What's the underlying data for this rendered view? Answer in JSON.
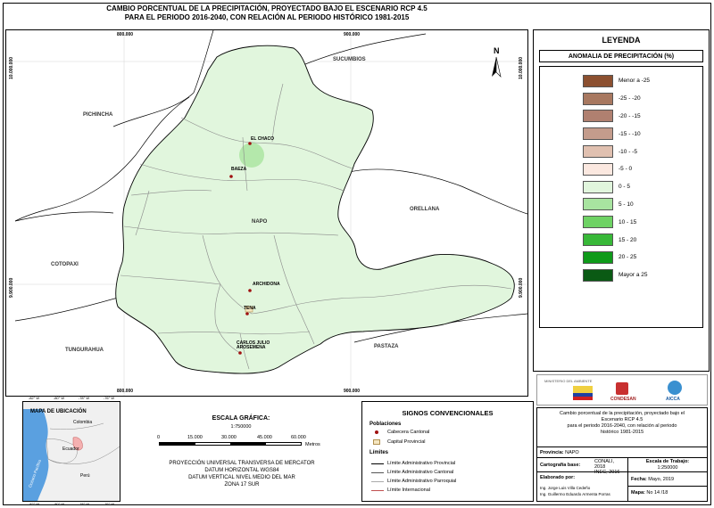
{
  "title": {
    "line1": "CAMBIO PORCENTUAL DE LA PRECIPITACIÓN, PROYECTADO BAJO EL ESCENARIO RCP 4.5",
    "line2": "PARA EL PERIODO 2016-2040, CON RELACIÓN AL PERIODO HISTÓRICO 1981-2015"
  },
  "map": {
    "coords": {
      "top_left": "800.000",
      "top_right": "900.000",
      "bottom_left": "800.000",
      "bottom_right": "900.000",
      "left_top": "10.000.000",
      "left_bottom": "9.900.000",
      "right_top": "10.000.000",
      "right_bottom": "9.900.000"
    },
    "provinces": {
      "sucumbios": "SUCUMBIOS",
      "pichincha": "PICHINCHA",
      "napo": "NAPO",
      "orellana": "ORELLANA",
      "cotopaxi": "COTOPAXI",
      "tungurahua": "TUNGURAHUA",
      "pastaza": "PASTAZA"
    },
    "towns": {
      "el_chaco": "EL CHACO",
      "baeza": "BAEZA",
      "archidona": "ARCHIDONA",
      "tena": "TENA",
      "carlos_line1": "CARLOS JULIO",
      "carlos_line2": "AROSEMENA"
    },
    "north": "N",
    "colors": {
      "land": "#e1f6dd",
      "hotspot": "#b4e8ab",
      "neighbor_border": "#000000",
      "internal_border": "#8a8a8a",
      "town_dot": "#a01010"
    }
  },
  "legend": {
    "title": "LEYENDA",
    "subtitle": "ANOMALIA DE PRECIPITACIÓN (%)",
    "items": [
      {
        "label": "Menor a -25",
        "color": "#8c5030"
      },
      {
        "label": "-25 - -20",
        "color": "#a87860"
      },
      {
        "label": "-20 - -15",
        "color": "#b08070"
      },
      {
        "label": "-15 - -10",
        "color": "#c49c8c"
      },
      {
        "label": "-10 - -5",
        "color": "#e0c0b0"
      },
      {
        "label": "-5 - 0",
        "color": "#fbe8e0"
      },
      {
        "label": "0 - 5",
        "color": "#e1f6dd"
      },
      {
        "label": "5 - 10",
        "color": "#a8e4a0"
      },
      {
        "label": "10 - 15",
        "color": "#6ed264"
      },
      {
        "label": "15 - 20",
        "color": "#38b838"
      },
      {
        "label": "20 - 25",
        "color": "#0f9a1a"
      },
      {
        "label": "Mayor a 25",
        "color": "#0a5a14"
      }
    ]
  },
  "logos": {
    "ministerio": "MINISTERIO DEL AMBIENTE",
    "condesan": "CONDESAN",
    "aicca": "AICCA"
  },
  "info": {
    "description": [
      "Cambio porcentual de la precipitación, proyectado bajo el",
      "Escenario RCP 4.5",
      "para el periodo 2016-2040, con relación al periodo",
      "histórico 1981-2015"
    ],
    "provincia_label": "Provincia:",
    "provincia_value": "NAPO",
    "cartografia_label": "Cartografía base:",
    "cartografia_value1": "CONALI, 2018",
    "cartografia_value2": "INEC, 2016",
    "escala_label": "Escala de Trabajo:",
    "escala_value": "1:250000",
    "elaborado_label": "Elaborado por:",
    "elaborado_1": "Ing. Jorge Luis Villa Cedeño",
    "elaborado_2": "Ing. Guillermo Eduardo Armenta Porras",
    "fecha_label": "Fecha:",
    "fecha_value": "Mayo, 2019",
    "mapa_label": "Mapa:",
    "mapa_value": "No 14 /18"
  },
  "location": {
    "title": "MAPA DE UBICACIÓN",
    "top_ticks": [
      "-82° W",
      "-80° W",
      "-78° W",
      "-76° W"
    ],
    "bottom_ticks": [
      "-82° W",
      "-80° W",
      "-78° W",
      "-76° W"
    ],
    "colombia": "Colombia",
    "ecuador": "Ecuador",
    "peru": "Perú",
    "ocean": "Océano Pacífico",
    "colors": {
      "ocean": "#5aa0e0",
      "land": "#f0f0f0",
      "highlight": "#f4b0b0"
    }
  },
  "scale": {
    "title": "ESCALA GRÁFICA:",
    "ratio": "1:750000",
    "ticks": [
      "0",
      "15.000",
      "30.000",
      "45.000",
      "60.000"
    ],
    "unit": "Metros",
    "proj1": "PROYECCIÓN UNIVERSAL TRANSVERSA DE MERCATOR",
    "proj2": "DATUM HORIZONTAL WGS84",
    "proj3": "DATUM VERTICAL NIVEL MEDIO DEL MAR",
    "proj4": "ZONA 17 SUR"
  },
  "signos": {
    "title": "SIGNOS CONVENCIONALES",
    "poblaciones": "Poblaciones",
    "cabecera": "Cabecera Cantonal",
    "capital": "Capital Provincial",
    "limites": "Límites",
    "lim_prov": "Límite Administrativo Provincial",
    "lim_cant": "Límite Administrativo Cantonal",
    "lim_parr": "Límite Administrativo Parroquial",
    "lim_int": "Límite Internacional"
  }
}
